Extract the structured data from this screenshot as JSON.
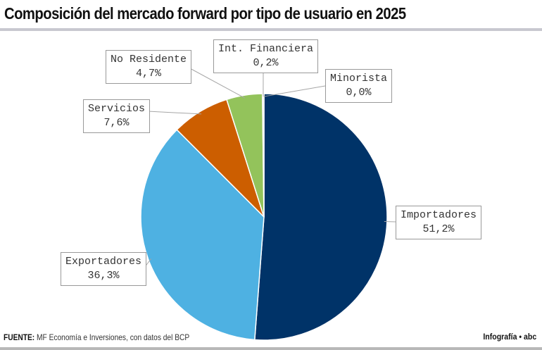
{
  "title": "Composición del mercado forward por tipo de usuario en 2025",
  "source_label": "FUENTE:",
  "source_text": "MF Economía e Inversiones, con datos del BCP",
  "credit": "Infografía • abc",
  "chart_data": {
    "type": "pie",
    "start": "top",
    "direction": "clockwise",
    "slices": [
      {
        "label": "Importadores",
        "value": 51.2,
        "display": "51,2%",
        "color": "#003368"
      },
      {
        "label": "Exportadores",
        "value": 36.3,
        "display": "36,3%",
        "color": "#4eb1e2"
      },
      {
        "label": "Servicios",
        "value": 7.6,
        "display": "7,6%",
        "color": "#cc5e00"
      },
      {
        "label": "No Residente",
        "value": 4.7,
        "display": "4,7%",
        "color": "#93c35b"
      },
      {
        "label": "Int. Financiera",
        "value": 0.2,
        "display": "0,2%",
        "color": "#d9d9d9"
      },
      {
        "label": "Minorista",
        "value": 0.0,
        "display": "0,0%",
        "color": "#7f7f7f"
      }
    ]
  }
}
